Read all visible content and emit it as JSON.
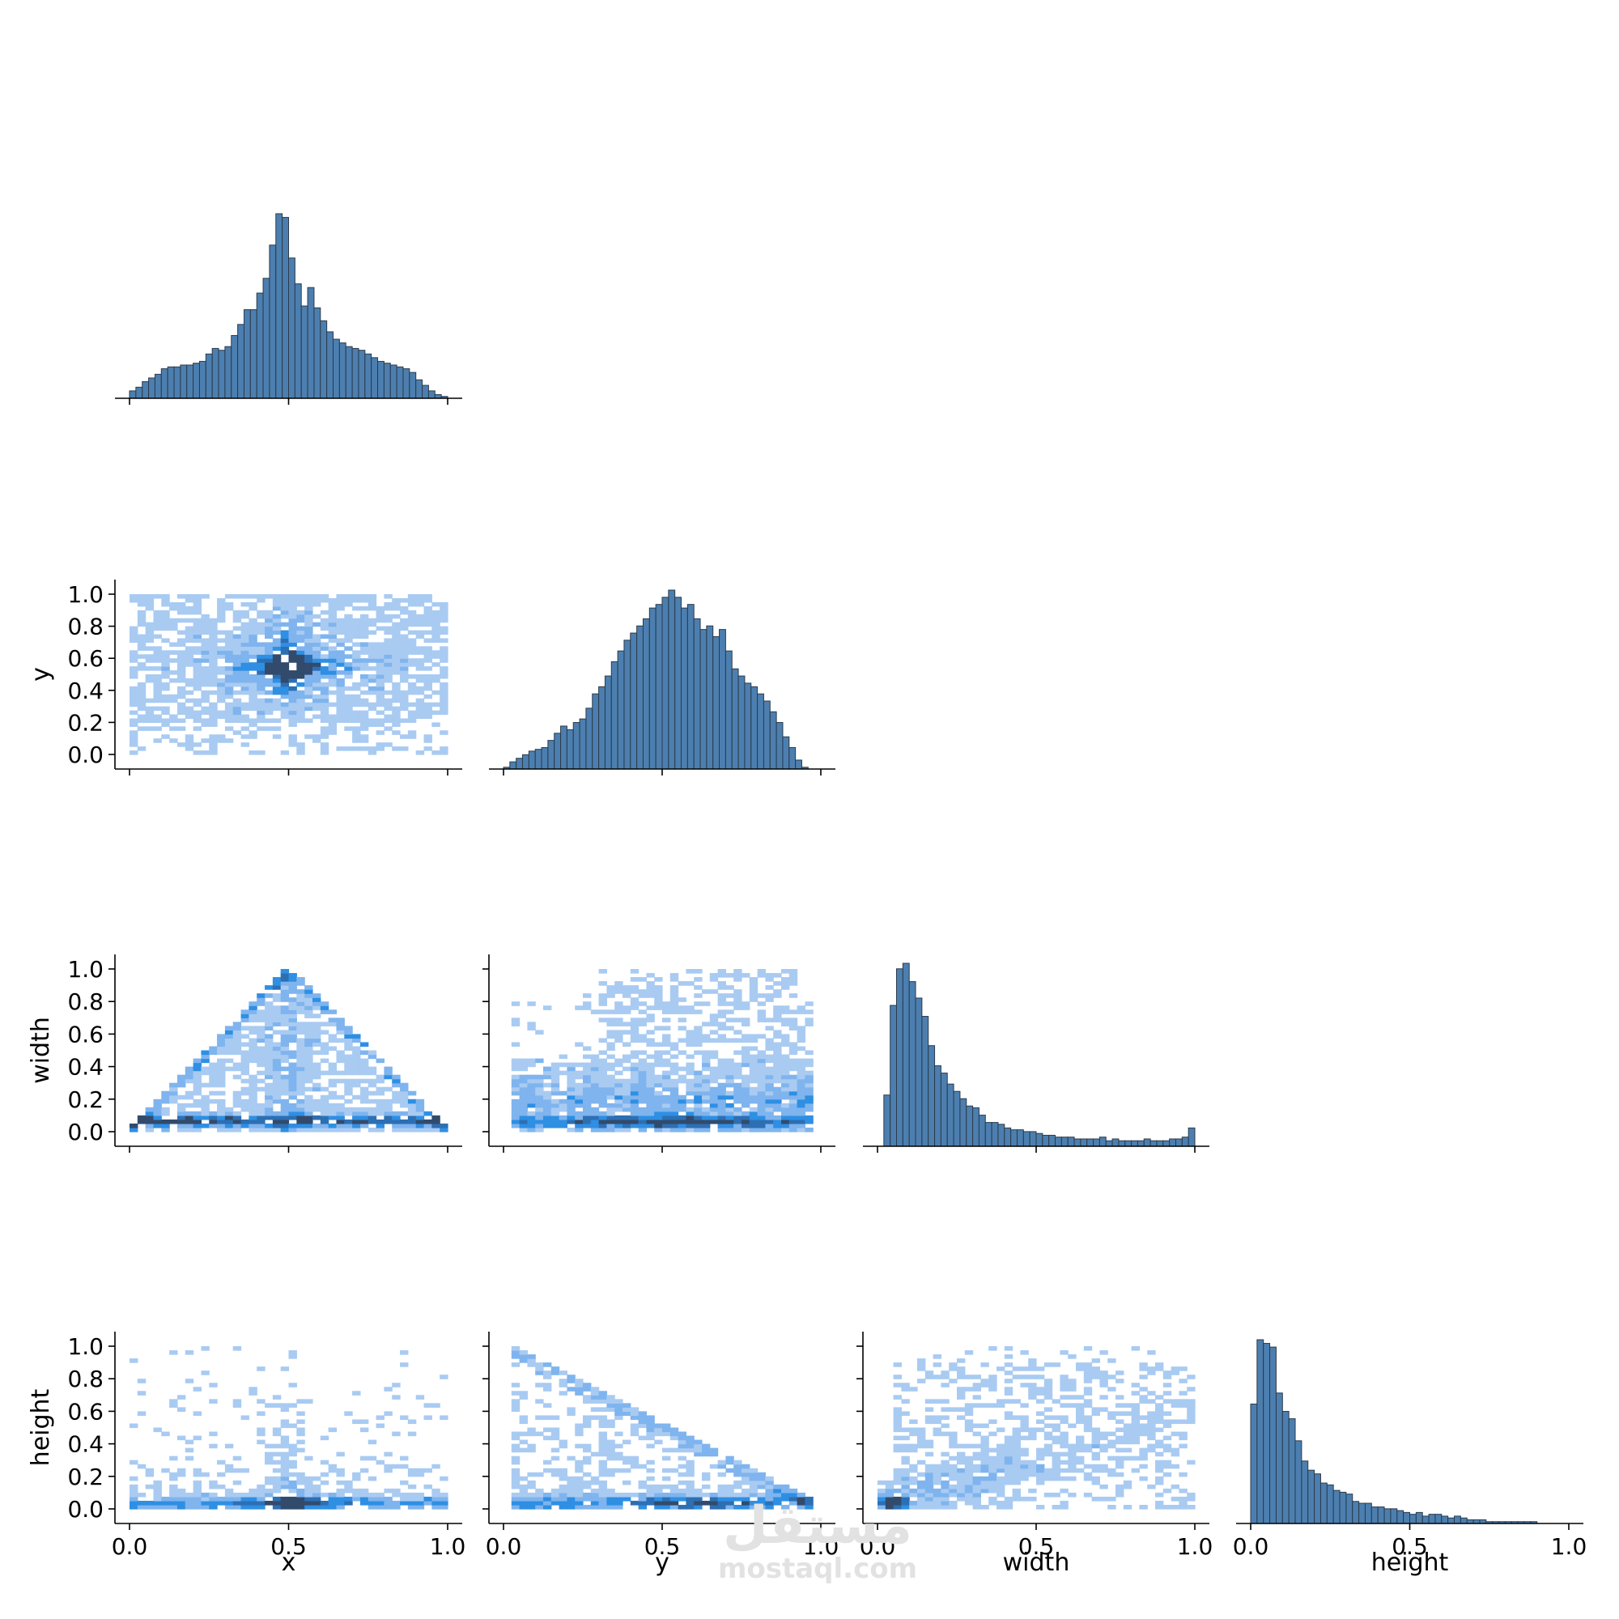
{
  "figure": {
    "title": ""
  },
  "watermark": {
    "arabic": "مستقل",
    "latin": "mostaql.com"
  },
  "colors": {
    "hist_fill": "#4c7fb0",
    "hist_edge": "#2b3a4a",
    "heat_light": "#a9cbf2",
    "heat_mid": "#2e8fe3",
    "heat_dark": "#324b6c",
    "axis": "#000000"
  },
  "chart_data": {
    "type": "pairplot",
    "variables": [
      "x",
      "y",
      "width",
      "height"
    ],
    "layout": "corner",
    "diag_kind": "hist",
    "offdiag_kind": "hist2d",
    "axis_range": [
      0.0,
      1.0
    ],
    "row_ticks": [
      "0.0",
      "0.2",
      "0.4",
      "0.6",
      "0.8",
      "1.0"
    ],
    "col_ticks": [
      "0.0",
      "0.5",
      "1.0"
    ],
    "diagonal": [
      {
        "variable": "x",
        "bin_width": 0.02,
        "rel_counts": [
          0.04,
          0.06,
          0.09,
          0.11,
          0.13,
          0.16,
          0.17,
          0.17,
          0.18,
          0.18,
          0.19,
          0.2,
          0.24,
          0.27,
          0.26,
          0.28,
          0.34,
          0.4,
          0.48,
          0.48,
          0.57,
          0.65,
          0.83,
          1.0,
          0.98,
          0.76,
          0.62,
          0.5,
          0.6,
          0.49,
          0.42,
          0.36,
          0.32,
          0.3,
          0.28,
          0.27,
          0.26,
          0.24,
          0.22,
          0.2,
          0.19,
          0.18,
          0.17,
          0.16,
          0.14,
          0.1,
          0.07,
          0.04,
          0.02,
          0.01
        ]
      },
      {
        "variable": "y",
        "bin_width": 0.02,
        "rel_counts": [
          0.01,
          0.04,
          0.06,
          0.08,
          0.1,
          0.11,
          0.12,
          0.16,
          0.2,
          0.24,
          0.22,
          0.26,
          0.28,
          0.34,
          0.42,
          0.46,
          0.52,
          0.6,
          0.66,
          0.72,
          0.76,
          0.8,
          0.84,
          0.9,
          0.92,
          0.96,
          1.0,
          0.96,
          0.9,
          0.92,
          0.84,
          0.78,
          0.8,
          0.74,
          0.78,
          0.66,
          0.56,
          0.52,
          0.48,
          0.46,
          0.42,
          0.38,
          0.32,
          0.26,
          0.18,
          0.12,
          0.05,
          0.01,
          0.0,
          0.0
        ]
      },
      {
        "variable": "width",
        "bin_width": 0.02,
        "rel_counts": [
          0.0,
          0.28,
          0.77,
          0.97,
          1.0,
          0.9,
          0.81,
          0.71,
          0.55,
          0.44,
          0.4,
          0.34,
          0.3,
          0.26,
          0.22,
          0.21,
          0.17,
          0.13,
          0.13,
          0.12,
          0.1,
          0.09,
          0.09,
          0.08,
          0.08,
          0.07,
          0.06,
          0.06,
          0.05,
          0.05,
          0.05,
          0.04,
          0.04,
          0.04,
          0.04,
          0.05,
          0.03,
          0.04,
          0.03,
          0.03,
          0.03,
          0.03,
          0.04,
          0.03,
          0.03,
          0.03,
          0.04,
          0.04,
          0.05,
          0.1
        ]
      },
      {
        "variable": "height",
        "bin_width": 0.02,
        "rel_counts": [
          0.65,
          1.0,
          0.98,
          0.96,
          0.71,
          0.61,
          0.57,
          0.45,
          0.34,
          0.29,
          0.27,
          0.22,
          0.21,
          0.18,
          0.17,
          0.16,
          0.12,
          0.11,
          0.11,
          0.09,
          0.09,
          0.08,
          0.08,
          0.07,
          0.06,
          0.05,
          0.06,
          0.04,
          0.05,
          0.05,
          0.04,
          0.03,
          0.04,
          0.03,
          0.02,
          0.02,
          0.02,
          0.01,
          0.01,
          0.01,
          0.01,
          0.01,
          0.01,
          0.01,
          0.01,
          0.0,
          0.0,
          0.0,
          0.0,
          0.0
        ]
      }
    ],
    "off_diagonal": [
      {
        "x": "x",
        "y": "y",
        "pattern": "dense peak near (0.5, 0.55); cross-shaped; uniform sparse background over [0,1]x[0,1]"
      },
      {
        "x": "x",
        "y": "width",
        "pattern": "triangle bounded by width <= 2*min(x, 1-x); dense band at width 0.05-0.1"
      },
      {
        "x": "y",
        "y": "width",
        "pattern": "widening spread upward; dense at low width; upper rows sparse"
      },
      {
        "x": "x",
        "y": "height",
        "pattern": "vertical spine at x=0.5; dense at low height"
      },
      {
        "x": "y",
        "y": "height",
        "pattern": "triangle bounded by height <= 1-y; dense at low height"
      },
      {
        "x": "width",
        "y": "height",
        "pattern": "positive correlation; very dense near (0.05, 0.05); spread increases with width"
      }
    ]
  }
}
